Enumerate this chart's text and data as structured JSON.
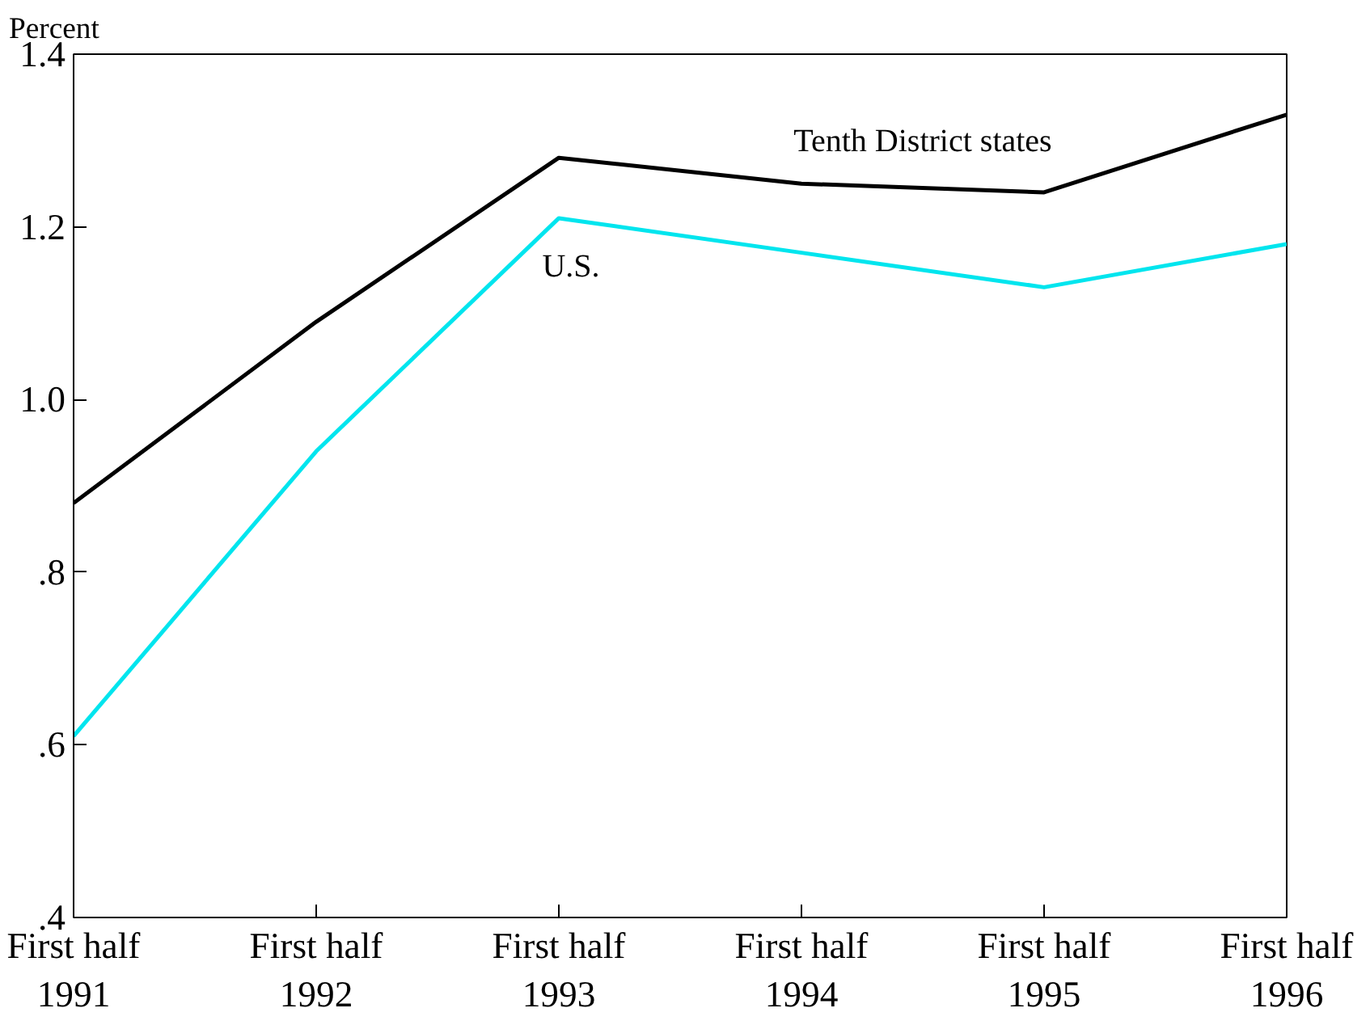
{
  "chart_data": {
    "type": "line",
    "ylabel": "Percent",
    "categories": [
      "First half\n1991",
      "First half\n1992",
      "First half\n1993",
      "First half\n1994",
      "First half\n1995",
      "First half\n1996"
    ],
    "series": [
      {
        "name": "Tenth District states",
        "color": "#000000",
        "values": [
          0.88,
          1.09,
          1.28,
          1.25,
          1.24,
          1.33
        ]
      },
      {
        "name": "U.S.",
        "color": "#00e5ee",
        "values": [
          0.61,
          0.94,
          1.21,
          1.17,
          1.13,
          1.18
        ]
      }
    ],
    "ylim": [
      0.4,
      1.4
    ],
    "yticks": [
      {
        "value": 0.4,
        "label": ".4"
      },
      {
        "value": 0.6,
        "label": ".6"
      },
      {
        "value": 0.8,
        "label": ".8"
      },
      {
        "value": 1.0,
        "label": "1.0"
      },
      {
        "value": 1.2,
        "label": "1.2"
      },
      {
        "value": 1.4,
        "label": "1.4"
      }
    ],
    "grid": false,
    "marker": "none",
    "line_style": "solid"
  }
}
